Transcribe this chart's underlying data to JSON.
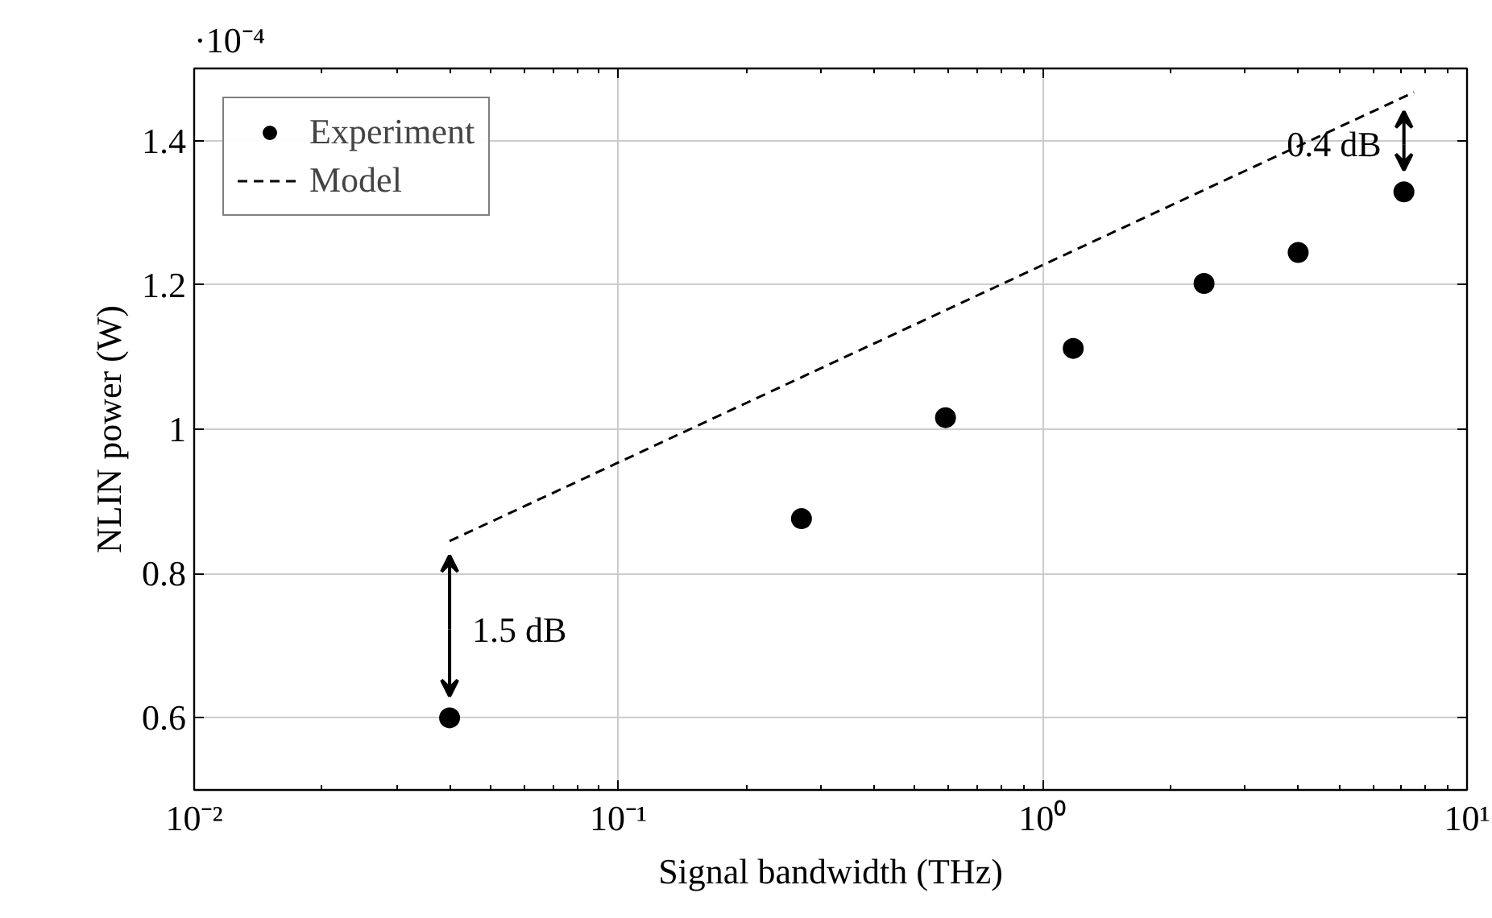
{
  "chart_data": {
    "type": "scatter",
    "xlabel": "Signal bandwidth (THz)",
    "ylabel": "NLIN power (W)",
    "log": "x",
    "grid": true,
    "legend": "top left",
    "marker": "circle",
    "xlim": [
      0.01,
      10
    ],
    "xticks": [
      {
        "value": 0.01,
        "label": "10⁻²"
      },
      {
        "value": 0.1,
        "label": "10⁻¹"
      },
      {
        "value": 1,
        "label": "10⁰"
      },
      {
        "value": 10,
        "label": "10¹"
      }
    ],
    "ylim": [
      0.5,
      1.5
    ],
    "yticks": [
      0.6,
      0.8,
      1,
      1.2,
      1.4
    ],
    "series": [
      {
        "name": "Experiment",
        "color": "#000000",
        "x": [
          0.04,
          0.27,
          0.59,
          1.18,
          2.4,
          4.0,
          7.1
        ],
        "values": [
          0.6,
          0.876,
          1.016,
          1.112,
          1.202,
          1.245,
          1.329
        ]
      },
      {
        "name": "Model",
        "type": "line",
        "line_style": "dashed",
        "marker": "none",
        "color": "#000000",
        "x": [
          0.04,
          7.5
        ],
        "values": [
          0.845,
          1.467
        ]
      }
    ],
    "annotations": [
      "·10⁻⁴",
      "1.5 dB",
      "0.4 dB"
    ]
  }
}
